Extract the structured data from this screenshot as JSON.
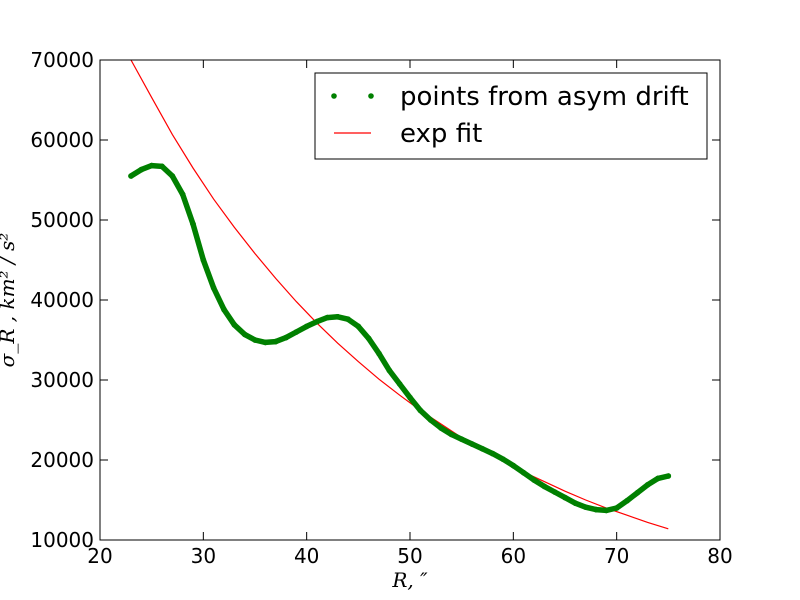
{
  "chart_data": {
    "type": "scatter",
    "xlabel": "R, ″",
    "ylabel": "σ_R , km² / s²",
    "xlim": [
      20,
      80
    ],
    "ylim": [
      10000,
      70000
    ],
    "x_ticks": [
      20,
      30,
      40,
      50,
      60,
      70,
      80
    ],
    "y_ticks": [
      10000,
      20000,
      30000,
      40000,
      50000,
      60000,
      70000
    ],
    "legend_position": "top-right",
    "grid": false,
    "series": [
      {
        "name": "points from asym drift",
        "kind": "scatter",
        "color": "#008000",
        "x": [
          23,
          24,
          25,
          26,
          27,
          28,
          29,
          30,
          31,
          32,
          33,
          34,
          35,
          36,
          37,
          38,
          39,
          40,
          41,
          42,
          43,
          44,
          45,
          46,
          47,
          48,
          49,
          50,
          51,
          52,
          53,
          54,
          55,
          56,
          57,
          58,
          59,
          60,
          61,
          62,
          63,
          64,
          65,
          66,
          67,
          68,
          69,
          70,
          71,
          72,
          73,
          74,
          75
        ],
        "y": [
          55500,
          56300,
          56800,
          56700,
          55500,
          53200,
          49500,
          45000,
          41500,
          38800,
          36900,
          35700,
          35000,
          34700,
          34800,
          35300,
          36000,
          36700,
          37300,
          37800,
          37900,
          37600,
          36700,
          35200,
          33300,
          31200,
          29500,
          27800,
          26200,
          25000,
          24000,
          23200,
          22600,
          22000,
          21400,
          20800,
          20100,
          19300,
          18400,
          17500,
          16700,
          16000,
          15300,
          14600,
          14100,
          13800,
          13700,
          14000,
          14900,
          15900,
          16900,
          17700,
          18000
        ]
      },
      {
        "name": "exp fit",
        "kind": "line",
        "color": "#ff0000",
        "x": [
          23,
          25,
          27,
          29,
          31,
          33,
          35,
          37,
          39,
          41,
          43,
          45,
          47,
          49,
          51,
          53,
          55,
          57,
          59,
          61,
          63,
          65,
          67,
          69,
          71,
          73,
          75
        ],
        "y": [
          70000,
          65300,
          60700,
          56500,
          52600,
          49100,
          45800,
          42700,
          39800,
          37100,
          34600,
          32300,
          30100,
          28100,
          26200,
          24500,
          22800,
          21300,
          19900,
          18500,
          17300,
          16100,
          15000,
          14000,
          13100,
          12200,
          11400
        ]
      }
    ]
  }
}
